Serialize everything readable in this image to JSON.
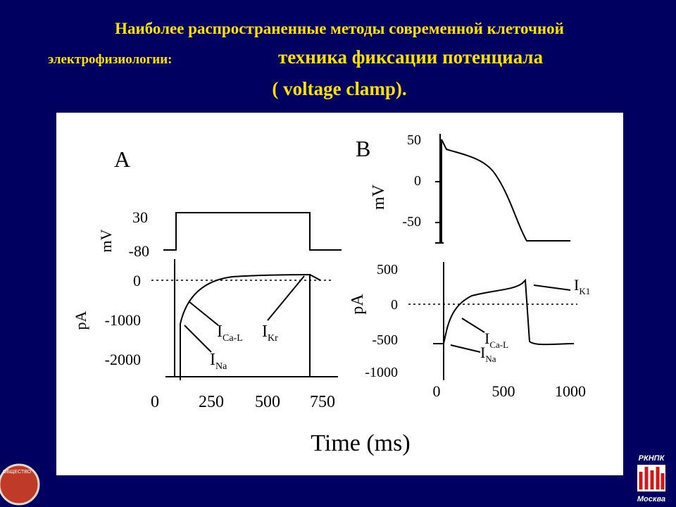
{
  "title": {
    "line1": "Наиболее распространенные методы современной клеточной",
    "line2_lead": "электрофизиологии:",
    "line2_main": "техника фиксации потенциала",
    "line3": "( voltage clamp)."
  },
  "figure": {
    "panel_a": {
      "label": "A",
      "voltage_axis": "mV",
      "voltage_ticks": [
        "30",
        "-80"
      ],
      "current_axis": "pA",
      "current_ticks": [
        "0",
        "-1000",
        "-2000"
      ],
      "time_ticks": [
        "0",
        "250",
        "500",
        "750"
      ],
      "annotations": [
        {
          "main": "I",
          "sub": "Ca-L"
        },
        {
          "main": "I",
          "sub": "Kr"
        },
        {
          "main": "I",
          "sub": "Na"
        }
      ]
    },
    "panel_b": {
      "label": "B",
      "voltage_axis": "mV",
      "voltage_ticks": [
        "50",
        "0",
        "-50"
      ],
      "current_axis": "pA",
      "current_ticks": [
        "500",
        "0",
        "-500",
        "-1000"
      ],
      "time_ticks": [
        "0",
        "500",
        "1000"
      ],
      "annotations": [
        {
          "main": "I",
          "sub": "K1"
        },
        {
          "main": "I",
          "sub": "Ca-L"
        },
        {
          "main": "I",
          "sub": "Na"
        }
      ]
    },
    "x_axis_title": "Time (ms)"
  },
  "logos": {
    "right_top": "РКНПК",
    "right_bottom": "Москва",
    "left": "ОБЩЕСТВО"
  }
}
